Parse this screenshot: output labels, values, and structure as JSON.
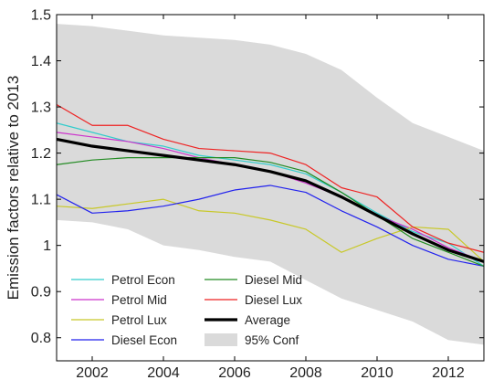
{
  "chart_data": {
    "type": "line",
    "title": "",
    "xlabel": "",
    "ylabel": "Emission factors relative to 2013",
    "xlim": [
      2001,
      2013
    ],
    "ylim": [
      0.75,
      1.5
    ],
    "x_ticks": [
      2002,
      2004,
      2006,
      2008,
      2010,
      2012
    ],
    "y_ticks": [
      0.8,
      0.9,
      1,
      1.1,
      1.2,
      1.3,
      1.4,
      1.5
    ],
    "y_tick_labels": [
      "0.8",
      "0.9",
      "1",
      "1.1",
      "1.2",
      "1.3",
      "1.4",
      "1.5"
    ],
    "grid": false,
    "legend_position": "bottom-left",
    "x": [
      2001,
      2002,
      2003,
      2004,
      2005,
      2006,
      2007,
      2008,
      2009,
      2010,
      2011,
      2012,
      2013
    ],
    "confidence_band": {
      "name": "95% Conf",
      "color": "#dadada",
      "upper": [
        1.48,
        1.475,
        1.465,
        1.455,
        1.45,
        1.445,
        1.435,
        1.415,
        1.38,
        1.32,
        1.265,
        1.235,
        1.205
      ],
      "lower": [
        1.055,
        1.05,
        1.035,
        1.0,
        0.99,
        0.975,
        0.965,
        0.925,
        0.885,
        0.86,
        0.835,
        0.795,
        0.785
      ]
    },
    "series": [
      {
        "name": "Petrol Econ",
        "color": "#33cccc",
        "width": 1.2,
        "values": [
          1.265,
          1.245,
          1.225,
          1.215,
          1.195,
          1.185,
          1.175,
          1.155,
          1.115,
          1.07,
          1.03,
          1.005,
          0.955
        ]
      },
      {
        "name": "Petrol Mid",
        "color": "#cc33cc",
        "width": 1.2,
        "values": [
          1.245,
          1.235,
          1.225,
          1.21,
          1.19,
          1.175,
          1.16,
          1.135,
          1.105,
          1.065,
          1.035,
          0.995,
          0.965
        ]
      },
      {
        "name": "Petrol Lux",
        "color": "#c8c828",
        "width": 1.2,
        "values": [
          1.085,
          1.08,
          1.09,
          1.1,
          1.075,
          1.07,
          1.055,
          1.035,
          0.985,
          1.015,
          1.04,
          1.035,
          0.965
        ]
      },
      {
        "name": "Diesel Econ",
        "color": "#2222ee",
        "width": 1.2,
        "values": [
          1.11,
          1.07,
          1.075,
          1.085,
          1.1,
          1.12,
          1.13,
          1.115,
          1.075,
          1.04,
          1.0,
          0.97,
          0.955
        ]
      },
      {
        "name": "Diesel Mid",
        "color": "#228b22",
        "width": 1.2,
        "values": [
          1.175,
          1.185,
          1.19,
          1.19,
          1.19,
          1.19,
          1.18,
          1.16,
          1.115,
          1.065,
          1.015,
          0.985,
          0.955
        ]
      },
      {
        "name": "Diesel Lux",
        "color": "#ee2222",
        "width": 1.2,
        "values": [
          1.305,
          1.26,
          1.26,
          1.23,
          1.21,
          1.205,
          1.2,
          1.175,
          1.125,
          1.105,
          1.04,
          1.005,
          0.985
        ]
      },
      {
        "name": "Average",
        "color": "#000000",
        "width": 3.2,
        "values": [
          1.23,
          1.215,
          1.205,
          1.195,
          1.185,
          1.175,
          1.16,
          1.14,
          1.105,
          1.065,
          1.025,
          0.99,
          0.965
        ]
      }
    ],
    "legend": {
      "left_column": [
        "Petrol Econ",
        "Petrol Mid",
        "Petrol Lux",
        "Diesel Econ"
      ],
      "right_column": [
        "Diesel Mid",
        "Diesel Lux",
        "Average",
        "95% Conf"
      ]
    }
  }
}
